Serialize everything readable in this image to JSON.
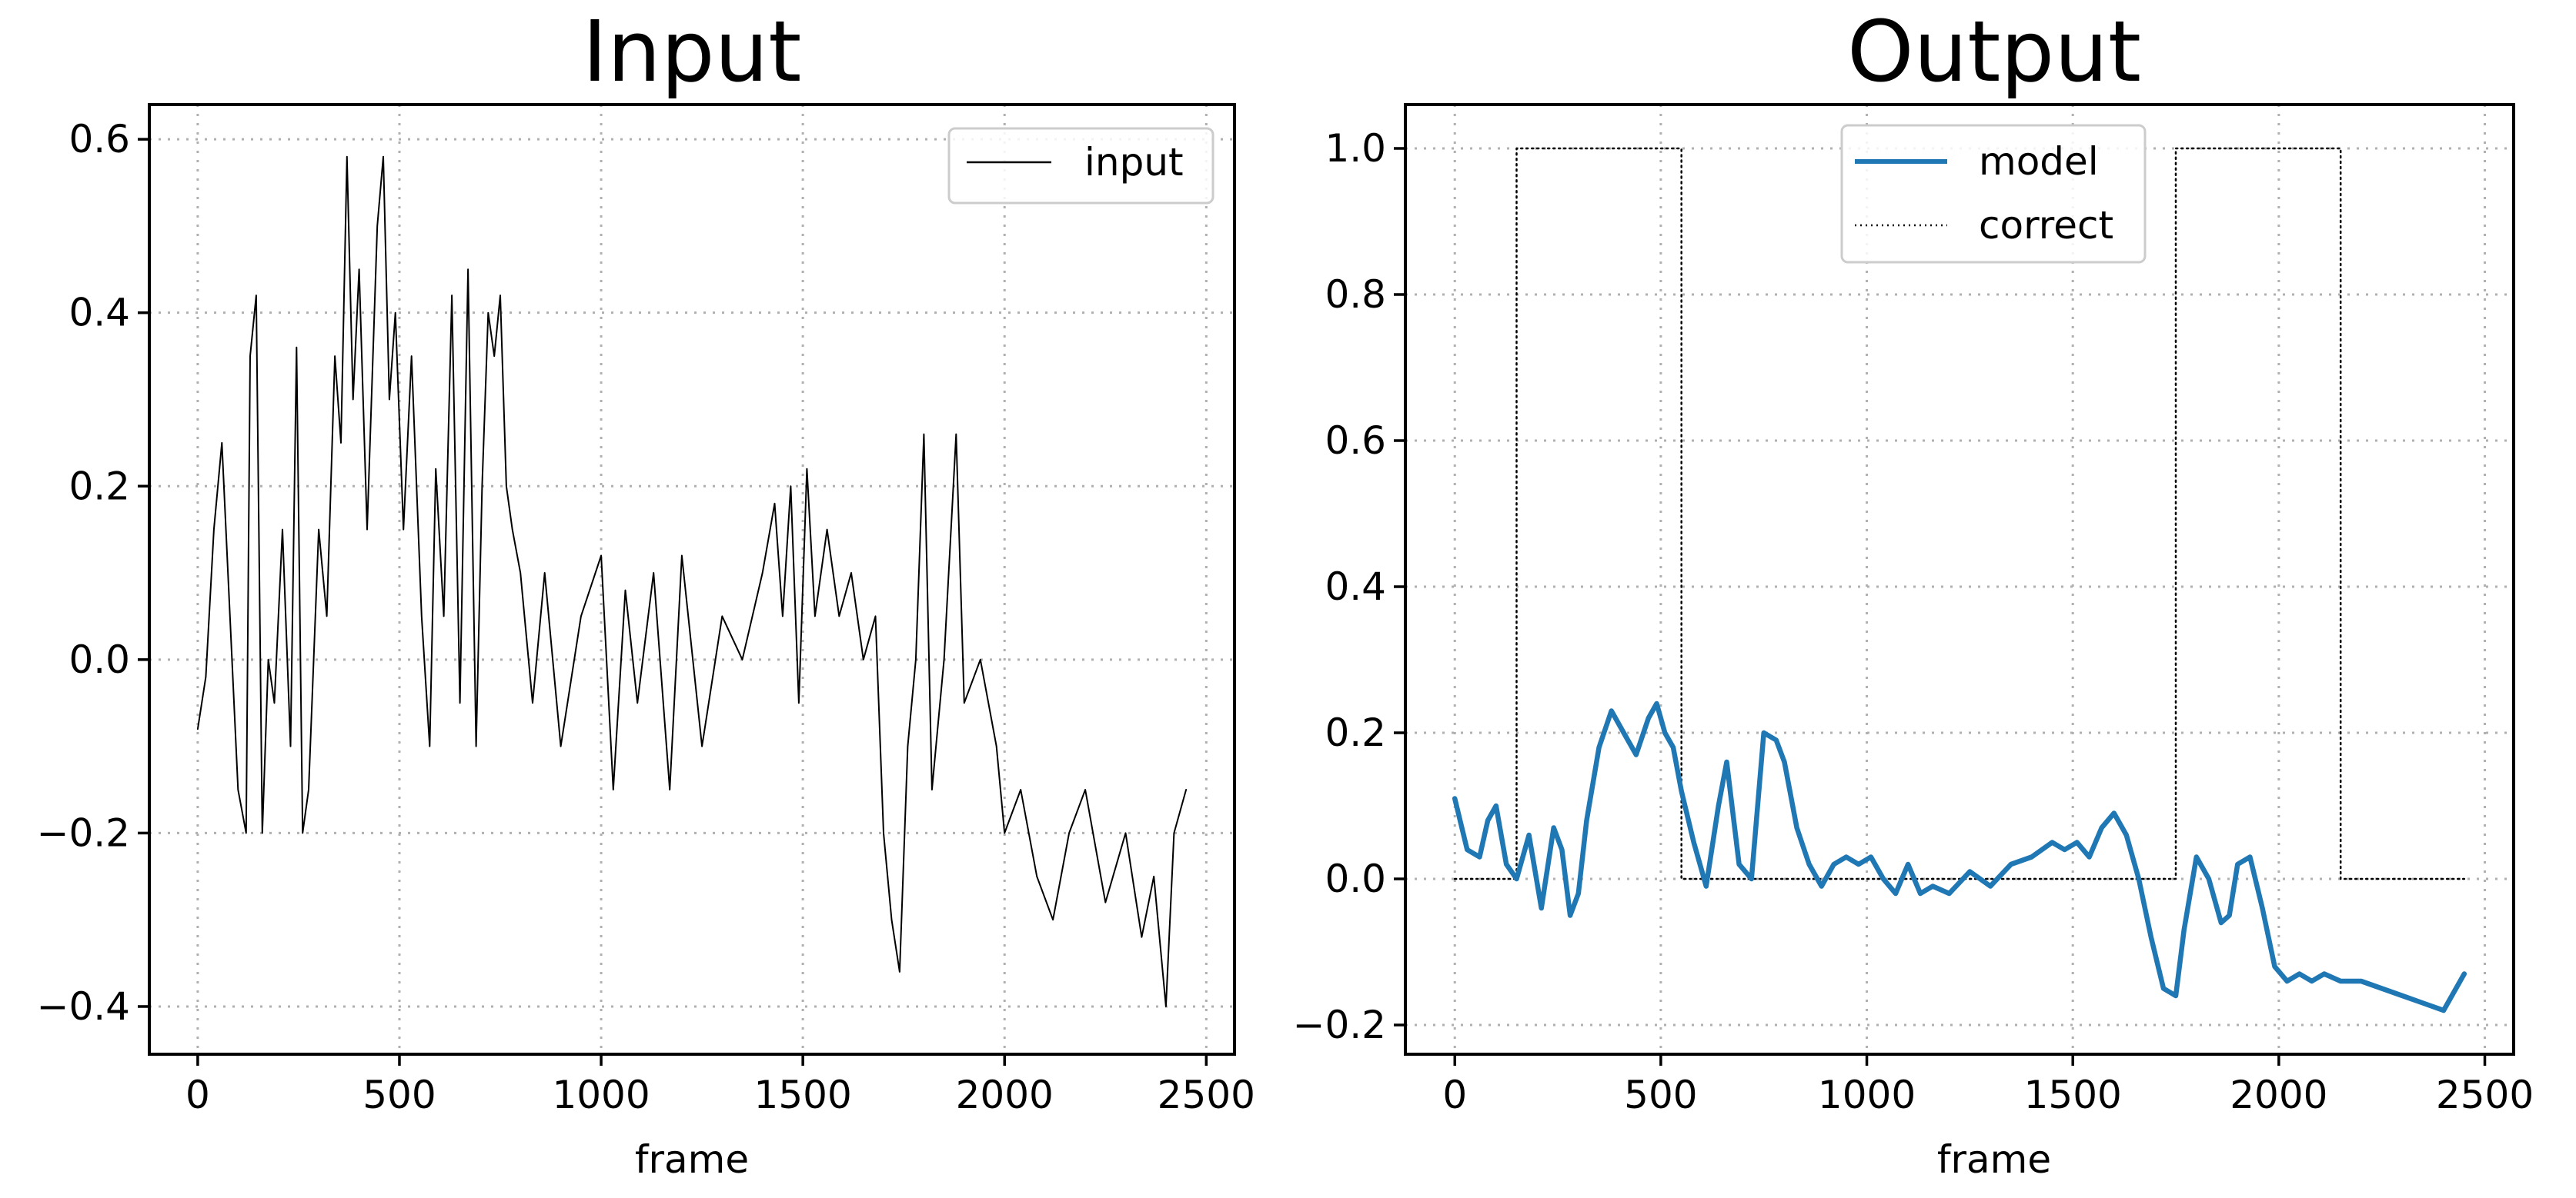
{
  "chart_data": [
    {
      "type": "line",
      "title": "Input",
      "xlabel": "frame",
      "ylabel": "",
      "xlim": [
        -120,
        2570
      ],
      "ylim": [
        -0.455,
        0.64
      ],
      "xticks": [
        0,
        500,
        1000,
        1500,
        2000,
        2500
      ],
      "yticks": [
        -0.4,
        -0.2,
        0.0,
        0.2,
        0.4,
        0.6
      ],
      "xtick_labels": [
        "0",
        "500",
        "1000",
        "1500",
        "2000",
        "2500"
      ],
      "ytick_labels": [
        "−0.4",
        "−0.2",
        "0.0",
        "0.2",
        "0.4",
        "0.6"
      ],
      "grid": true,
      "legend_position": "top-right",
      "series": [
        {
          "name": "input",
          "color": "#000000",
          "style": "solid-thin",
          "x": [
            0,
            20,
            40,
            60,
            80,
            100,
            120,
            130,
            145,
            160,
            175,
            190,
            210,
            230,
            245,
            260,
            275,
            300,
            320,
            340,
            355,
            370,
            385,
            400,
            420,
            445,
            460,
            475,
            490,
            510,
            530,
            555,
            575,
            590,
            610,
            630,
            650,
            670,
            690,
            705,
            720,
            735,
            750,
            765,
            780,
            800,
            830,
            860,
            900,
            950,
            1000,
            1030,
            1060,
            1090,
            1130,
            1170,
            1200,
            1250,
            1300,
            1350,
            1400,
            1430,
            1450,
            1470,
            1490,
            1510,
            1530,
            1560,
            1590,
            1620,
            1650,
            1680,
            1700,
            1720,
            1740,
            1760,
            1780,
            1800,
            1820,
            1850,
            1880,
            1900,
            1940,
            1980,
            2000,
            2040,
            2080,
            2120,
            2160,
            2200,
            2250,
            2300,
            2340,
            2370,
            2400,
            2420,
            2450
          ],
          "y": [
            -0.08,
            -0.02,
            0.15,
            0.25,
            0.05,
            -0.15,
            -0.2,
            0.35,
            0.42,
            -0.2,
            0.0,
            -0.05,
            0.15,
            -0.1,
            0.36,
            -0.2,
            -0.15,
            0.15,
            0.05,
            0.35,
            0.25,
            0.58,
            0.3,
            0.45,
            0.15,
            0.5,
            0.58,
            0.3,
            0.4,
            0.15,
            0.35,
            0.05,
            -0.1,
            0.22,
            0.05,
            0.42,
            -0.05,
            0.45,
            -0.1,
            0.2,
            0.4,
            0.35,
            0.42,
            0.2,
            0.15,
            0.1,
            -0.05,
            0.1,
            -0.1,
            0.05,
            0.12,
            -0.15,
            0.08,
            -0.05,
            0.1,
            -0.15,
            0.12,
            -0.1,
            0.05,
            0.0,
            0.1,
            0.18,
            0.05,
            0.2,
            -0.05,
            0.22,
            0.05,
            0.15,
            0.05,
            0.1,
            0.0,
            0.05,
            -0.2,
            -0.3,
            -0.36,
            -0.1,
            0.0,
            0.26,
            -0.15,
            0.0,
            0.26,
            -0.05,
            0.0,
            -0.1,
            -0.2,
            -0.15,
            -0.25,
            -0.3,
            -0.2,
            -0.15,
            -0.28,
            -0.2,
            -0.32,
            -0.25,
            -0.4,
            -0.2,
            -0.15
          ]
        }
      ]
    },
    {
      "type": "line",
      "title": "Output",
      "xlabel": "frame",
      "ylabel": "",
      "xlim": [
        -120,
        2570
      ],
      "ylim": [
        -0.24,
        1.06
      ],
      "xticks": [
        0,
        500,
        1000,
        1500,
        2000,
        2500
      ],
      "yticks": [
        -0.2,
        0.0,
        0.2,
        0.4,
        0.6,
        0.8,
        1.0
      ],
      "xtick_labels": [
        "0",
        "500",
        "1000",
        "1500",
        "2000",
        "2500"
      ],
      "ytick_labels": [
        "−0.2",
        "0.0",
        "0.2",
        "0.4",
        "0.6",
        "0.8",
        "1.0"
      ],
      "grid": true,
      "legend_position": "top-center",
      "series": [
        {
          "name": "model",
          "color": "#1f77b4",
          "style": "solid-thick",
          "x": [
            0,
            30,
            60,
            80,
            100,
            125,
            150,
            180,
            210,
            240,
            260,
            280,
            300,
            320,
            350,
            380,
            410,
            440,
            470,
            490,
            510,
            530,
            550,
            580,
            610,
            640,
            660,
            690,
            720,
            750,
            780,
            800,
            830,
            860,
            890,
            920,
            950,
            980,
            1010,
            1040,
            1070,
            1100,
            1130,
            1160,
            1200,
            1250,
            1300,
            1350,
            1400,
            1450,
            1480,
            1510,
            1540,
            1570,
            1600,
            1630,
            1660,
            1690,
            1720,
            1750,
            1770,
            1800,
            1830,
            1860,
            1880,
            1900,
            1930,
            1960,
            1990,
            2020,
            2050,
            2080,
            2110,
            2150,
            2200,
            2250,
            2300,
            2350,
            2400,
            2420,
            2450
          ],
          "y": [
            0.11,
            0.04,
            0.03,
            0.08,
            0.1,
            0.02,
            0.0,
            0.06,
            -0.04,
            0.07,
            0.04,
            -0.05,
            -0.02,
            0.08,
            0.18,
            0.23,
            0.2,
            0.17,
            0.22,
            0.24,
            0.2,
            0.18,
            0.12,
            0.05,
            -0.01,
            0.1,
            0.16,
            0.02,
            0.0,
            0.2,
            0.19,
            0.16,
            0.07,
            0.02,
            -0.01,
            0.02,
            0.03,
            0.02,
            0.03,
            0.0,
            -0.02,
            0.02,
            -0.02,
            -0.01,
            -0.02,
            0.01,
            -0.01,
            0.02,
            0.03,
            0.05,
            0.04,
            0.05,
            0.03,
            0.07,
            0.09,
            0.06,
            0.0,
            -0.08,
            -0.15,
            -0.16,
            -0.07,
            0.03,
            0.0,
            -0.06,
            -0.05,
            0.02,
            0.03,
            -0.04,
            -0.12,
            -0.14,
            -0.13,
            -0.14,
            -0.13,
            -0.14,
            -0.14,
            -0.15,
            -0.16,
            -0.17,
            -0.18,
            -0.16,
            -0.13
          ]
        },
        {
          "name": "correct",
          "color": "#000000",
          "style": "dotted",
          "x": [
            0,
            150,
            150,
            550,
            550,
            1750,
            1750,
            2150,
            2150,
            2450
          ],
          "y": [
            0,
            0,
            1,
            1,
            0,
            0,
            1,
            1,
            0,
            0
          ]
        }
      ]
    }
  ]
}
